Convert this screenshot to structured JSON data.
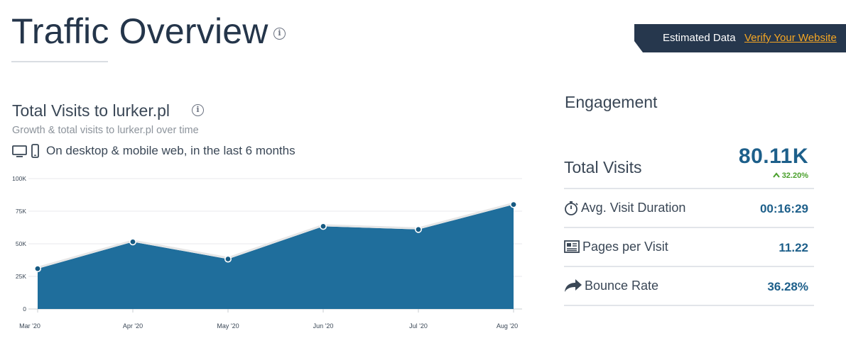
{
  "header": {
    "title": "Traffic Overview",
    "info_icon": "info-icon"
  },
  "banner": {
    "label": "Estimated Data",
    "link": "Verify Your Website"
  },
  "visits_section": {
    "title": "Total Visits to lurker.pl",
    "subtitle": "Growth & total visits to lurker.pl over time",
    "device_note": "On desktop & mobile web, in the last 6 months",
    "icons": [
      "desktop-icon",
      "mobile-icon"
    ]
  },
  "chart_data": {
    "type": "area",
    "categories": [
      "Mar '20",
      "Apr '20",
      "May '20",
      "Jun '20",
      "Jul '20",
      "Aug '20"
    ],
    "values": [
      30900,
      51500,
      38300,
      63400,
      61000,
      80110
    ],
    "yticks": [
      "0",
      "25K",
      "50K",
      "75K",
      "100K"
    ],
    "ylim": [
      0,
      100000
    ],
    "grid": true,
    "colors": {
      "fill": "#1f6e9c",
      "line": "#e6e6e6",
      "point": "#165a82"
    }
  },
  "engagement": {
    "title": "Engagement",
    "total_visits": {
      "label": "Total Visits",
      "value": "80.11K",
      "change": "32.20%",
      "change_direction": "up"
    },
    "metrics": [
      {
        "icon": "stopwatch-icon",
        "label": "Avg. Visit Duration",
        "value": "00:16:29"
      },
      {
        "icon": "pages-icon",
        "label": "Pages per Visit",
        "value": "11.22"
      },
      {
        "icon": "bounce-arrow-icon",
        "label": "Bounce Rate",
        "value": "36.28%"
      }
    ]
  },
  "colors": {
    "title": "#24354a",
    "accent_blue": "#1d5f8a",
    "banner_bg": "#26374d",
    "link_orange": "#f5a623",
    "positive_green": "#4aa02c"
  }
}
